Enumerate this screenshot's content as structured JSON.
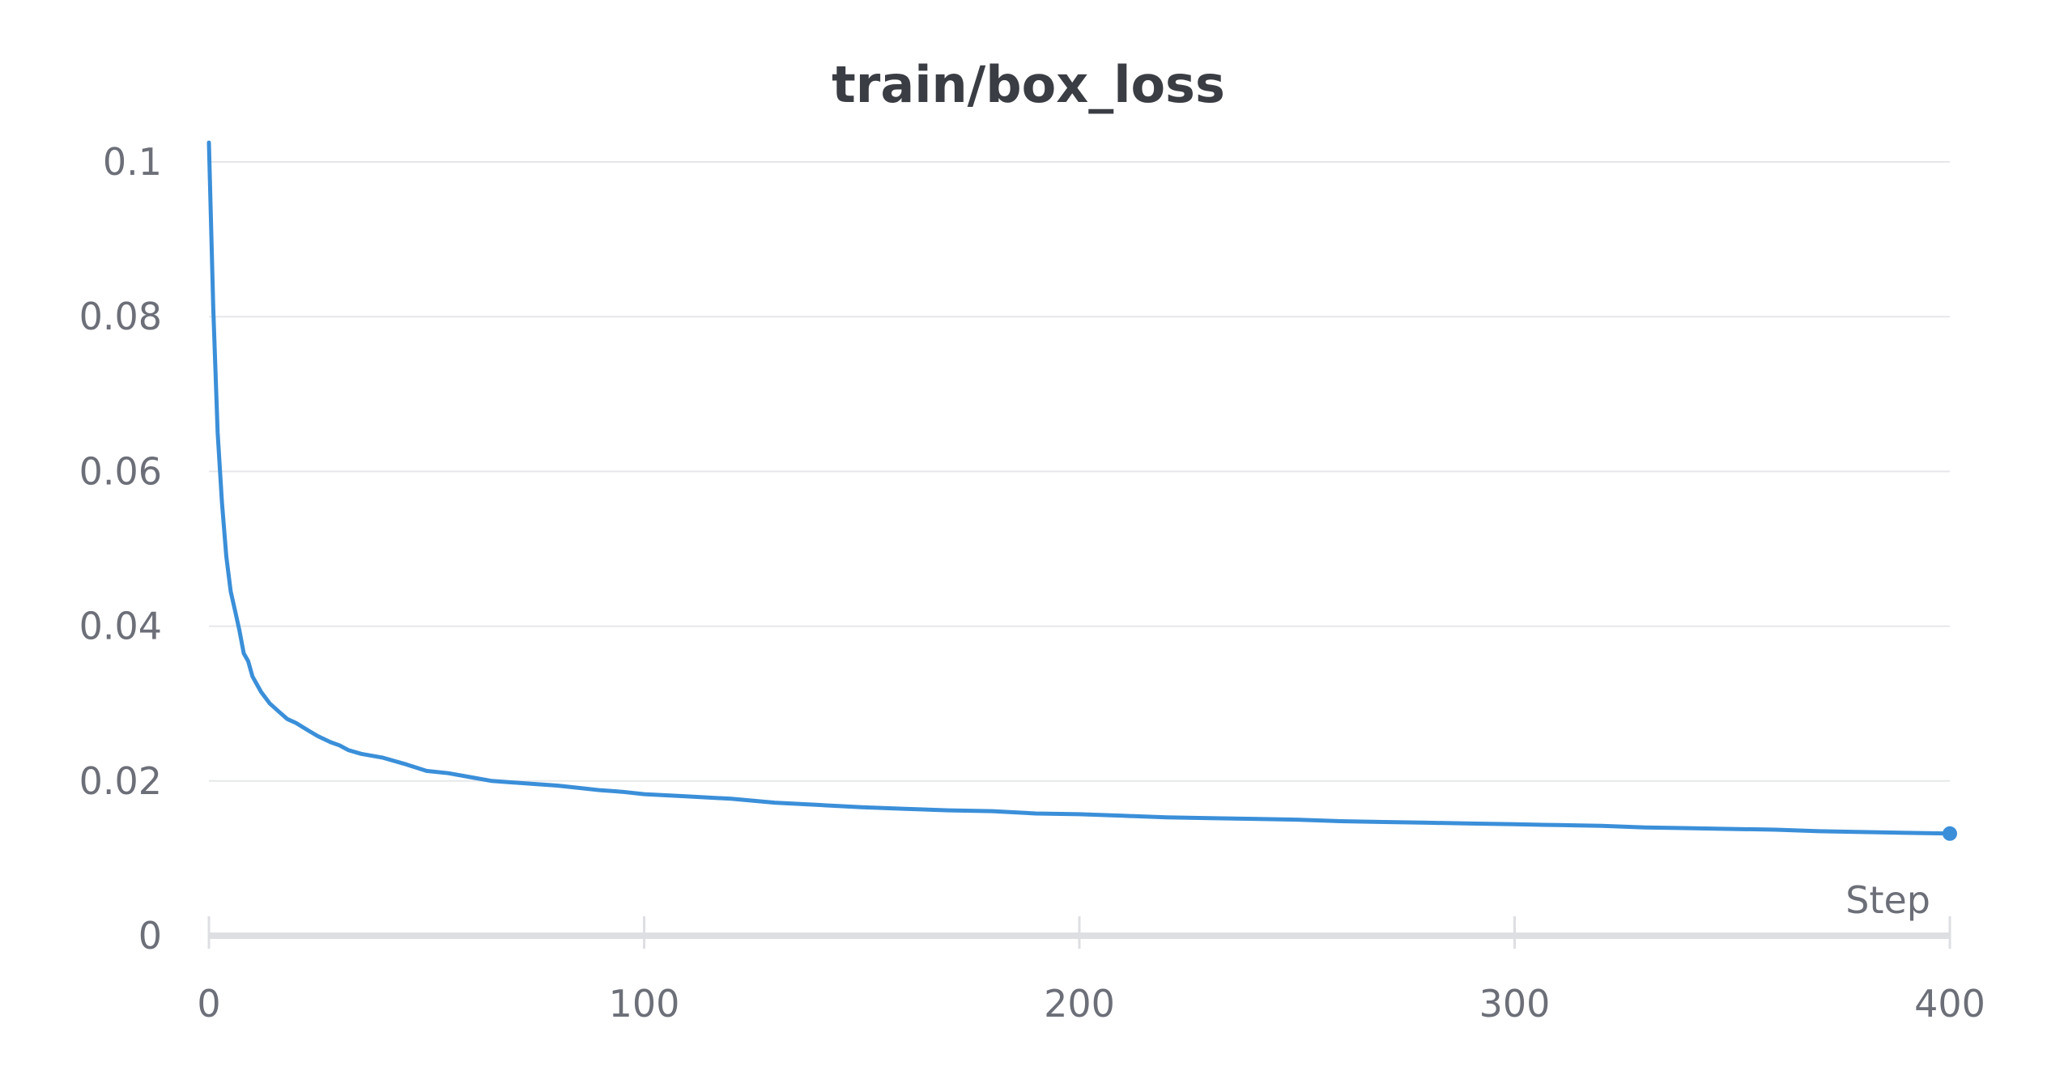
{
  "chart_data": {
    "type": "line",
    "title": "train/box_loss",
    "xlabel": "Step",
    "ylabel": "",
    "xlim": [
      0,
      400
    ],
    "ylim": [
      0,
      0.1
    ],
    "x_ticks": [
      {
        "value": 0,
        "label": "0"
      },
      {
        "value": 100,
        "label": "100"
      },
      {
        "value": 200,
        "label": "200"
      },
      {
        "value": 300,
        "label": "300"
      },
      {
        "value": 400,
        "label": "400"
      }
    ],
    "y_ticks": [
      {
        "value": 0,
        "label": "0"
      },
      {
        "value": 0.02,
        "label": "0.02"
      },
      {
        "value": 0.04,
        "label": "0.04"
      },
      {
        "value": 0.06,
        "label": "0.06"
      },
      {
        "value": 0.08,
        "label": "0.08"
      },
      {
        "value": 0.1,
        "label": "0.1"
      }
    ],
    "grid": true,
    "legend": "none",
    "series": [
      {
        "color": "#3b8fd9",
        "x": [
          0,
          1,
          2,
          3,
          4,
          5,
          6,
          7,
          8,
          9,
          10,
          12,
          14,
          16,
          18,
          20,
          22,
          25,
          28,
          30,
          32,
          35,
          38,
          40,
          45,
          50,
          55,
          60,
          65,
          70,
          75,
          80,
          85,
          90,
          95,
          100,
          110,
          120,
          130,
          140,
          150,
          160,
          170,
          180,
          190,
          200,
          210,
          220,
          230,
          240,
          250,
          260,
          270,
          280,
          290,
          300,
          310,
          320,
          330,
          340,
          350,
          360,
          370,
          380,
          390,
          400
        ],
        "y": [
          0.1025,
          0.081,
          0.065,
          0.056,
          0.049,
          0.0445,
          0.042,
          0.0395,
          0.0365,
          0.0355,
          0.0335,
          0.0315,
          0.03,
          0.029,
          0.028,
          0.0275,
          0.0268,
          0.0258,
          0.025,
          0.0246,
          0.024,
          0.0235,
          0.0232,
          0.023,
          0.0222,
          0.0213,
          0.021,
          0.0205,
          0.02,
          0.0198,
          0.0196,
          0.0194,
          0.0191,
          0.0188,
          0.0186,
          0.0183,
          0.018,
          0.0177,
          0.0172,
          0.0169,
          0.0166,
          0.0164,
          0.0162,
          0.0161,
          0.0158,
          0.0157,
          0.0155,
          0.0153,
          0.0152,
          0.0151,
          0.015,
          0.0148,
          0.0147,
          0.0146,
          0.0145,
          0.0144,
          0.0143,
          0.0142,
          0.014,
          0.0139,
          0.0138,
          0.0137,
          0.0135,
          0.0134,
          0.0133,
          0.0132
        ]
      }
    ]
  }
}
